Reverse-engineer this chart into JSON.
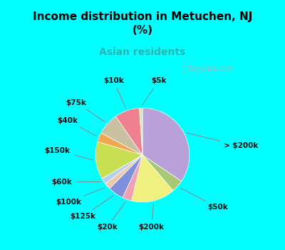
{
  "title": "Income distribution in Metuchen, NJ\n(%)",
  "subtitle": "Asian residents",
  "title_color": "#000000",
  "subtitle_color": "#2ab5b5",
  "background_color": "#00ffff",
  "pie_bg_color": "#dff0e8",
  "watermark": "Ⓣ City-Data.com",
  "slices": [
    {
      "label": "> $200k",
      "value": 32,
      "color": "#b8a0d8"
    },
    {
      "label": "$50k",
      "value": 4,
      "color": "#a8c878"
    },
    {
      "label": "$200k",
      "value": 14,
      "color": "#f0f080"
    },
    {
      "label": "$20k",
      "value": 3,
      "color": "#f0a0b0"
    },
    {
      "label": "$125k",
      "value": 5,
      "color": "#8090d8"
    },
    {
      "label": "$100k",
      "value": 2,
      "color": "#f0c8a8"
    },
    {
      "label": "$60k",
      "value": 2,
      "color": "#b8d0f0"
    },
    {
      "label": "$150k",
      "value": 12,
      "color": "#c8e050"
    },
    {
      "label": "$40k",
      "value": 3,
      "color": "#f0a850"
    },
    {
      "label": "$75k",
      "value": 7,
      "color": "#c8c0a0"
    },
    {
      "label": "$10k",
      "value": 8,
      "color": "#f08090"
    },
    {
      "label": "$5k",
      "value": 1,
      "color": "#d0e8b0"
    }
  ],
  "label_fontsize": 7.5,
  "figsize": [
    4.0,
    3.5
  ],
  "dpi": 100
}
